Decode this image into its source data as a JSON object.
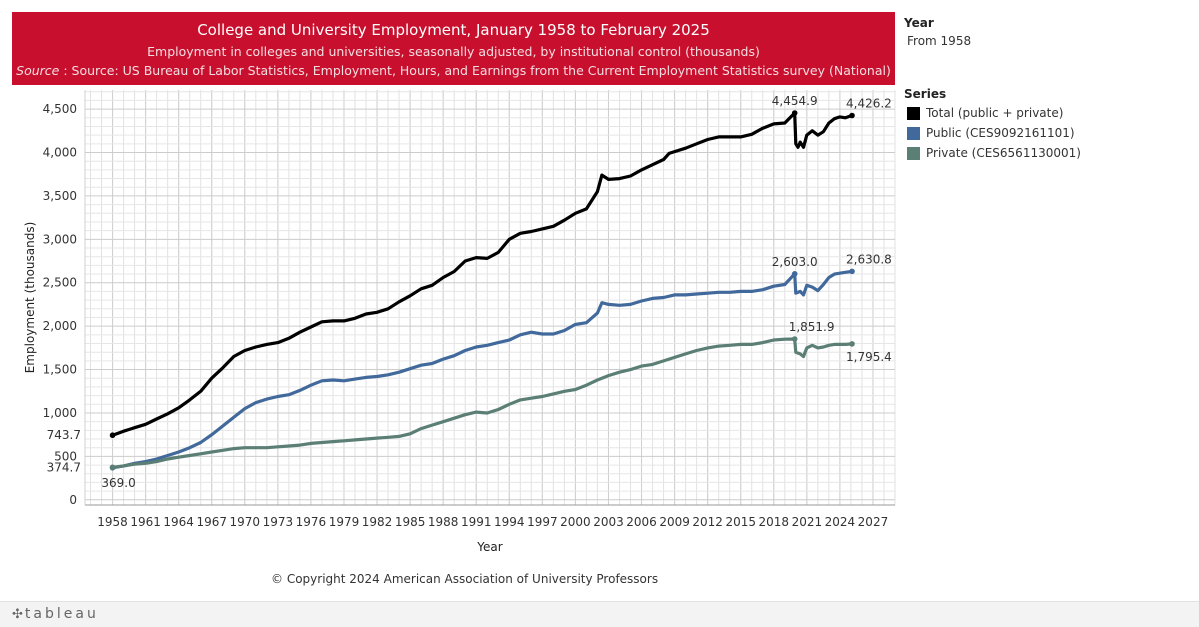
{
  "chart_data": {
    "type": "line",
    "title": "College and University Employment, January 1958 to February 2025",
    "subtitle": "Employment in colleges and universities, seasonally adjusted, by institutional control (thousands)",
    "source_label": "Source",
    "source_text": " : Source: US Bureau of Labor Statistics, Employment, Hours, and Earnings from the Current Employment Statistics survey (National)",
    "xlabel": "Year",
    "ylabel": "Employment (thousands)",
    "xlim": [
      1955.5,
      2029
    ],
    "ylim": [
      -60,
      4720
    ],
    "x_ticks": [
      1958,
      1961,
      1964,
      1967,
      1970,
      1973,
      1976,
      1979,
      1982,
      1985,
      1988,
      1991,
      1994,
      1997,
      2000,
      2003,
      2006,
      2009,
      2012,
      2015,
      2018,
      2021,
      2024,
      2027
    ],
    "y_ticks": [
      0,
      500,
      1000,
      1500,
      2000,
      2500,
      3000,
      3500,
      4000,
      4500
    ],
    "y_tick_labels": [
      "0",
      "500",
      "1,000",
      "1,500",
      "2,000",
      "2,500",
      "3,000",
      "3,500",
      "4,000",
      "4,500"
    ],
    "grid": true,
    "legend_position": "right",
    "series": [
      {
        "name": "Total (public + private)",
        "color": "#000000",
        "x": [
          1958.0,
          1959.0,
          1960.0,
          1961.0,
          1962.0,
          1963.0,
          1964.0,
          1965.0,
          1966.0,
          1967.0,
          1968.0,
          1969.0,
          1970.0,
          1971.0,
          1972.0,
          1973.0,
          1974.0,
          1975.0,
          1976.0,
          1977.0,
          1978.0,
          1979.0,
          1980.0,
          1981.0,
          1982.0,
          1983.0,
          1984.0,
          1985.0,
          1986.0,
          1987.0,
          1988.0,
          1989.0,
          1990.0,
          1991.0,
          1992.0,
          1993.0,
          1994.0,
          1995.0,
          1996.0,
          1997.0,
          1998.0,
          1999.0,
          2000.0,
          2001.0,
          2002.0,
          2002.4,
          2003.0,
          2004.0,
          2005.0,
          2006.0,
          2007.0,
          2008.0,
          2008.5,
          2009.0,
          2010.0,
          2011.0,
          2012.0,
          2013.0,
          2014.0,
          2015.0,
          2016.0,
          2017.0,
          2018.0,
          2019.0,
          2019.9,
          2020.0,
          2020.2,
          2020.4,
          2020.7,
          2021.0,
          2021.5,
          2022.0,
          2022.5,
          2023.0,
          2023.5,
          2024.0,
          2024.5,
          2025.1
        ],
        "values": [
          743.7,
          790,
          830,
          870,
          930,
          990,
          1060,
          1150,
          1250,
          1400,
          1520,
          1650,
          1720,
          1760,
          1790,
          1810,
          1860,
          1930,
          1990,
          2050,
          2060,
          2060,
          2090,
          2140,
          2160,
          2200,
          2280,
          2350,
          2430,
          2470,
          2560,
          2630,
          2750,
          2790,
          2780,
          2850,
          3000,
          3070,
          3090,
          3120,
          3150,
          3220,
          3300,
          3350,
          3550,
          3740,
          3690,
          3700,
          3730,
          3800,
          3860,
          3920,
          3990,
          4010,
          4050,
          4100,
          4150,
          4180,
          4180,
          4180,
          4210,
          4280,
          4330,
          4340,
          4454.9,
          4100,
          4060,
          4120,
          4060,
          4200,
          4250,
          4200,
          4240,
          4340,
          4390,
          4410,
          4400,
          4426.2
        ]
      },
      {
        "name": "Public (CES9092161101)",
        "color": "#41699c",
        "x": [
          1958.0,
          1959.0,
          1960.0,
          1961.0,
          1962.0,
          1963.0,
          1964.0,
          1965.0,
          1966.0,
          1967.0,
          1968.0,
          1969.0,
          1970.0,
          1971.0,
          1972.0,
          1973.0,
          1974.0,
          1975.0,
          1976.0,
          1977.0,
          1978.0,
          1979.0,
          1980.0,
          1981.0,
          1982.0,
          1983.0,
          1984.0,
          1985.0,
          1986.0,
          1987.0,
          1988.0,
          1989.0,
          1990.0,
          1991.0,
          1992.0,
          1993.0,
          1994.0,
          1995.0,
          1996.0,
          1997.0,
          1998.0,
          1999.0,
          2000.0,
          2001.0,
          2002.0,
          2002.4,
          2003.0,
          2004.0,
          2005.0,
          2006.0,
          2007.0,
          2008.0,
          2009.0,
          2010.0,
          2011.0,
          2012.0,
          2013.0,
          2014.0,
          2015.0,
          2016.0,
          2017.0,
          2018.0,
          2019.0,
          2019.9,
          2020.0,
          2020.4,
          2020.7,
          2021.0,
          2021.5,
          2022.0,
          2022.5,
          2023.0,
          2023.5,
          2024.0,
          2024.5,
          2025.1
        ],
        "values": [
          369.0,
          390,
          420,
          440,
          470,
          510,
          550,
          600,
          660,
          750,
          850,
          950,
          1050,
          1120,
          1160,
          1190,
          1210,
          1260,
          1320,
          1370,
          1380,
          1370,
          1390,
          1410,
          1420,
          1440,
          1470,
          1510,
          1550,
          1570,
          1620,
          1660,
          1720,
          1760,
          1780,
          1810,
          1840,
          1900,
          1930,
          1910,
          1910,
          1950,
          2020,
          2040,
          2150,
          2270,
          2250,
          2240,
          2250,
          2290,
          2320,
          2330,
          2360,
          2360,
          2370,
          2380,
          2390,
          2390,
          2400,
          2400,
          2420,
          2460,
          2480,
          2603.0,
          2380,
          2400,
          2360,
          2470,
          2450,
          2410,
          2480,
          2560,
          2600,
          2610,
          2620,
          2630.8
        ]
      },
      {
        "name": "Private (CES6561130001)",
        "color": "#5b7f75",
        "x": [
          1958.0,
          1959.0,
          1960.0,
          1961.0,
          1962.0,
          1963.0,
          1964.0,
          1965.0,
          1966.0,
          1967.0,
          1968.0,
          1969.0,
          1970.0,
          1971.0,
          1972.0,
          1973.0,
          1974.0,
          1975.0,
          1976.0,
          1977.0,
          1978.0,
          1979.0,
          1980.0,
          1981.0,
          1982.0,
          1983.0,
          1984.0,
          1985.0,
          1986.0,
          1987.0,
          1988.0,
          1989.0,
          1990.0,
          1991.0,
          1992.0,
          1993.0,
          1994.0,
          1995.0,
          1996.0,
          1997.0,
          1998.0,
          1999.0,
          2000.0,
          2001.0,
          2002.0,
          2003.0,
          2004.0,
          2005.0,
          2006.0,
          2007.0,
          2008.0,
          2009.0,
          2010.0,
          2011.0,
          2012.0,
          2013.0,
          2014.0,
          2015.0,
          2016.0,
          2017.0,
          2018.0,
          2019.0,
          2019.9,
          2020.0,
          2020.4,
          2020.7,
          2021.0,
          2021.5,
          2022.0,
          2022.5,
          2023.0,
          2023.5,
          2024.0,
          2024.5,
          2025.1
        ],
        "values": [
          374.7,
          390,
          410,
          420,
          440,
          470,
          490,
          510,
          530,
          550,
          570,
          590,
          600,
          600,
          600,
          610,
          620,
          630,
          650,
          660,
          670,
          680,
          690,
          700,
          710,
          720,
          730,
          760,
          820,
          860,
          900,
          940,
          980,
          1010,
          1000,
          1040,
          1100,
          1150,
          1170,
          1190,
          1220,
          1250,
          1270,
          1320,
          1380,
          1430,
          1470,
          1500,
          1540,
          1560,
          1600,
          1640,
          1680,
          1720,
          1750,
          1770,
          1780,
          1790,
          1790,
          1810,
          1840,
          1850,
          1851.9,
          1700,
          1680,
          1650,
          1750,
          1780,
          1750,
          1760,
          1780,
          1790,
          1790,
          1790,
          1795.4
        ]
      }
    ],
    "annotations": [
      {
        "series": 0,
        "x": 1958.0,
        "y": 743.7,
        "label": "743.7",
        "anchor": "left-end"
      },
      {
        "series": 0,
        "x": 2019.9,
        "y": 4454.9,
        "label": "4,454.9",
        "anchor": "top"
      },
      {
        "series": 0,
        "x": 2025.1,
        "y": 4426.2,
        "label": "4,426.2",
        "anchor": "top-right"
      },
      {
        "series": 1,
        "x": 1958.0,
        "y": 369.0,
        "label": "369.0",
        "anchor": "below"
      },
      {
        "series": 1,
        "x": 2019.9,
        "y": 2603.0,
        "label": "2,603.0",
        "anchor": "top"
      },
      {
        "series": 1,
        "x": 2025.1,
        "y": 2630.8,
        "label": "2,630.8",
        "anchor": "top-right"
      },
      {
        "series": 2,
        "x": 1958.0,
        "y": 374.7,
        "label": "374.7",
        "anchor": "left-end"
      },
      {
        "series": 2,
        "x": 2019.9,
        "y": 1851.9,
        "label": "1,851.9",
        "anchor": "top-right"
      },
      {
        "series": 2,
        "x": 2025.1,
        "y": 1795.4,
        "label": "1,795.4",
        "anchor": "below-right"
      }
    ]
  },
  "sidebar": {
    "year_heading": "Year",
    "year_value": "From 1958",
    "series_heading": "Series"
  },
  "copyright": "© Copyright 2024 American Association of University Professors",
  "footer": {
    "logo": "tableau"
  }
}
